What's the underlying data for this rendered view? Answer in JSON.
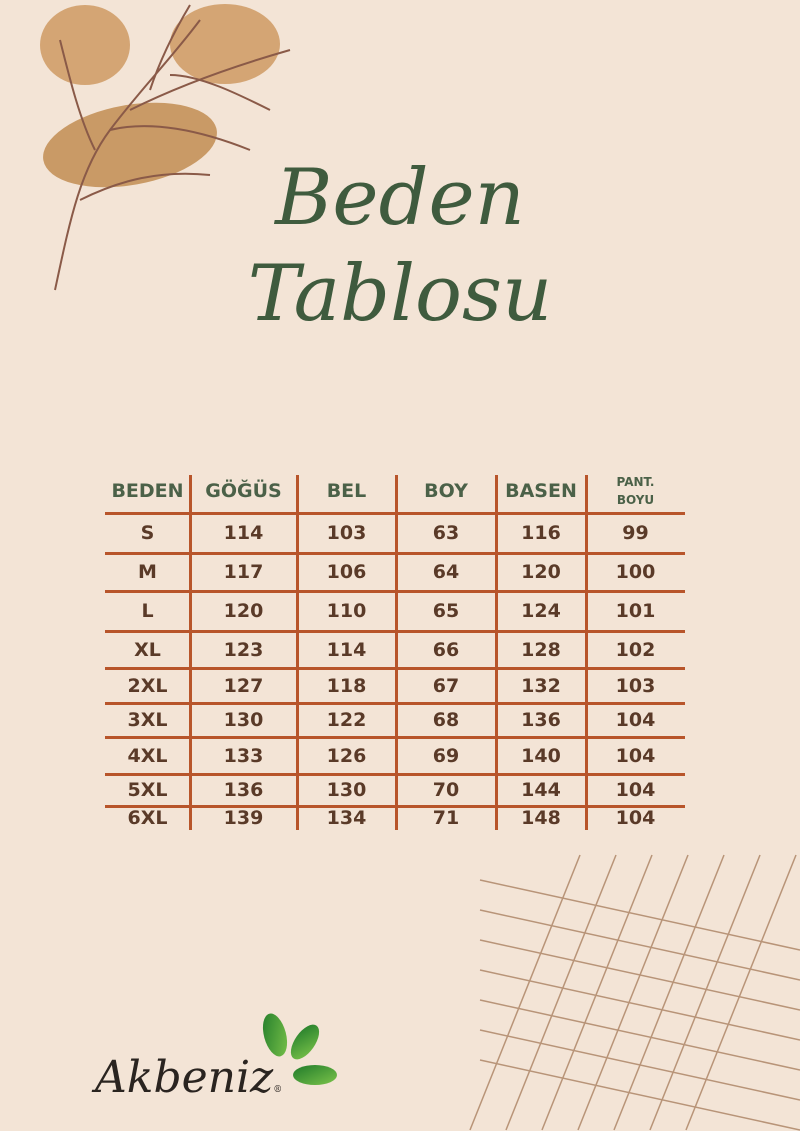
{
  "title": {
    "line1": "Beden",
    "line2": "Tablosu"
  },
  "table": {
    "headers": [
      "BEDEN",
      "GÖĞÜS",
      "BEL",
      "BOY",
      "BASEN",
      "PANT. BOYU"
    ],
    "rows": [
      [
        "S",
        "114",
        "103",
        "63",
        "116",
        "99"
      ],
      [
        "M",
        "117",
        "106",
        "64",
        "120",
        "100"
      ],
      [
        "L",
        "120",
        "110",
        "65",
        "124",
        "101"
      ],
      [
        "XL",
        "123",
        "114",
        "66",
        "128",
        "102"
      ],
      [
        "2XL",
        "127",
        "118",
        "67",
        "132",
        "103"
      ],
      [
        "3XL",
        "130",
        "122",
        "68",
        "136",
        "104"
      ],
      [
        "4XL",
        "133",
        "126",
        "69",
        "140",
        "104"
      ],
      [
        "5XL",
        "136",
        "130",
        "70",
        "144",
        "104"
      ],
      [
        "6XL",
        "139",
        "134",
        "71",
        "148",
        "104"
      ]
    ]
  },
  "logo": {
    "text": "Akbeniz",
    "mark": "®"
  },
  "colors": {
    "background": "#f3e4d6",
    "title": "#3f5b3e",
    "header": "#4b6148",
    "rule": "#b8552a",
    "cell": "#5a3a28",
    "leaf": "#c99a66",
    "logo_leaf": "#3a9a3a"
  }
}
